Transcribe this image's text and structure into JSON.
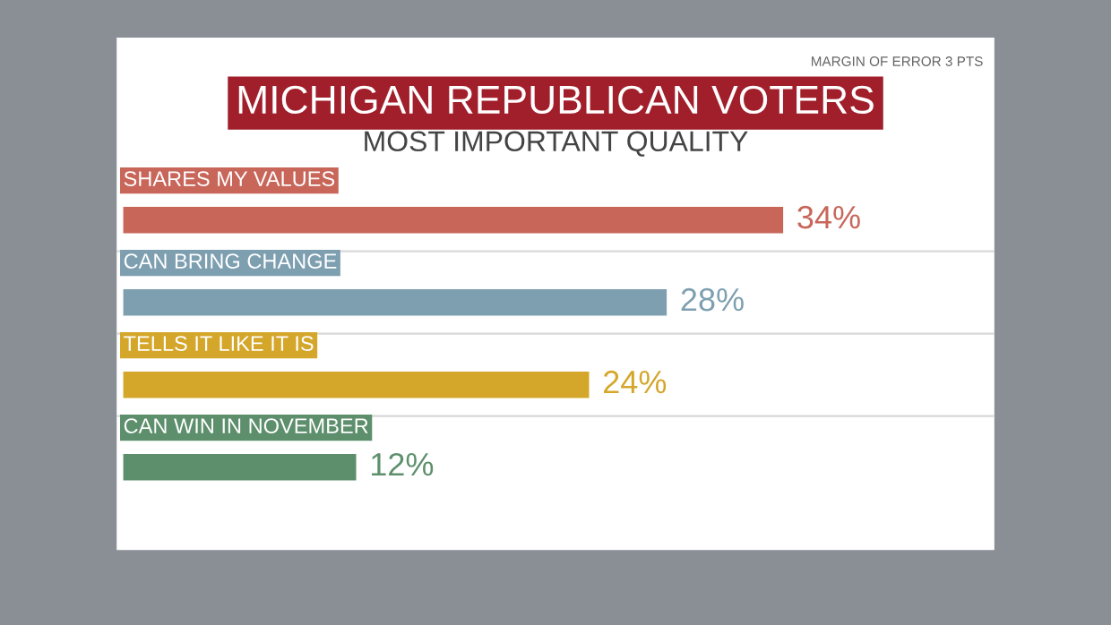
{
  "chart_data": {
    "type": "bar",
    "orientation": "horizontal",
    "title": "MICHIGAN REPUBLICAN VOTERS",
    "subtitle": "MOST IMPORTANT QUALITY",
    "annotations": [
      "MARGIN OF ERROR 3 PTS"
    ],
    "categories": [
      "SHARES MY VALUES",
      "CAN BRING CHANGE",
      "TELLS IT LIKE IT IS",
      "CAN WIN IN NOVEMBER"
    ],
    "values": [
      34,
      28,
      24,
      12
    ],
    "colors": [
      "#c8665a",
      "#7d9fb0",
      "#d4a62a",
      "#5d8f6c"
    ],
    "value_labels": [
      "34%",
      "28%",
      "24%",
      "12%"
    ]
  }
}
